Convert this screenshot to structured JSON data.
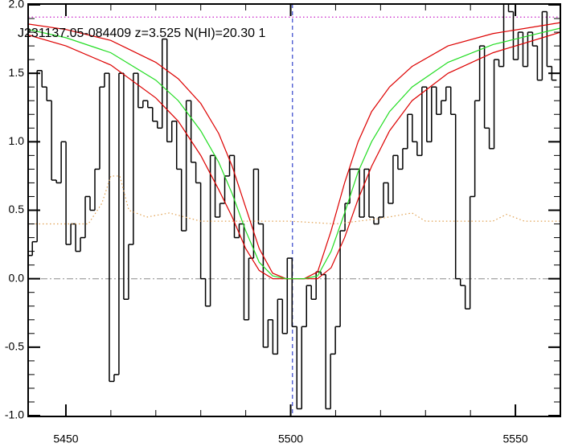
{
  "chart_data": {
    "type": "spectrum",
    "title": "J231137.05-084409 z=3.525 N(HI)=20.30 1",
    "xlim": [
      5441.6,
      5560
    ],
    "ylim": [
      -1.0,
      2.0
    ],
    "xticks": [
      5450,
      5500,
      5550
    ],
    "yticks": [
      {
        "value": -1,
        "label": "-1.0"
      },
      {
        "value": -0.5,
        "label": "-0.5"
      },
      {
        "value": 0,
        "label": "0.0"
      },
      0.5,
      {
        "value": 1,
        "label": "1.0"
      },
      1.5,
      {
        "value": 2,
        "label": "2.0"
      }
    ],
    "series": [
      {
        "style": "step",
        "color": "#000000",
        "x": [
          5442.0,
          5443.07,
          5444.14,
          5445.21,
          5446.28,
          5447.35,
          5448.42,
          5449.49,
          5450.56,
          5451.63,
          5452.7,
          5453.77,
          5454.84,
          5455.91,
          5456.98,
          5458.05,
          5459.12,
          5460.19,
          5461.26,
          5462.33,
          5463.4,
          5464.47,
          5465.54,
          5466.61,
          5467.68,
          5468.75,
          5469.82,
          5470.89,
          5471.96,
          5473.03,
          5474.1,
          5475.17,
          5476.24,
          5477.31,
          5478.38,
          5479.45,
          5480.52,
          5481.59,
          5482.66,
          5483.73,
          5484.8,
          5485.87,
          5486.94,
          5488.01,
          5489.08,
          5490.15,
          5491.22,
          5492.29,
          5493.36,
          5494.43,
          5495.5,
          5496.57,
          5497.64,
          5498.71,
          5499.78,
          5500.85,
          5501.92,
          5502.99,
          5504.06,
          5505.13,
          5506.2,
          5507.27,
          5508.34,
          5509.41,
          5510.48,
          5511.55,
          5512.62,
          5513.69,
          5514.76,
          5515.83,
          5516.9,
          5517.97,
          5519.04,
          5520.11,
          5521.18,
          5522.25,
          5523.32,
          5524.39,
          5525.46,
          5526.53,
          5527.6,
          5528.67,
          5529.74,
          5530.81,
          5531.88,
          5532.95,
          5534.02,
          5535.09,
          5536.16,
          5537.23,
          5538.3,
          5539.37,
          5540.44,
          5541.51,
          5542.58,
          5543.65,
          5544.72,
          5545.79,
          5546.86,
          5547.93,
          5549.0,
          5550.07,
          5551.14,
          5552.21,
          5553.28,
          5554.35,
          5555.42,
          5556.49,
          5557.56,
          5558.63
        ],
        "values": [
          0.17,
          0.27,
          1.52,
          1.4,
          1.3,
          0.72,
          0.7,
          1.0,
          0.25,
          0.4,
          0.2,
          0.3,
          0.6,
          0.5,
          0.8,
          1.4,
          1.5,
          -0.75,
          -0.7,
          1.5,
          -0.15,
          0.25,
          1.5,
          1.25,
          1.3,
          1.25,
          1.15,
          1.1,
          1.75,
          1.0,
          1.15,
          0.8,
          0.35,
          1.3,
          0.85,
          0.7,
          0.0,
          -0.2,
          0.9,
          0.45,
          0.55,
          0.75,
          0.9,
          0.3,
          0.4,
          -0.3,
          0.15,
          0.8,
          0.4,
          -0.5,
          -0.3,
          -0.55,
          -0.15,
          -0.4,
          0.15,
          -0.35,
          -0.95,
          -0.35,
          -0.05,
          -0.15,
          0.05,
          0.03,
          -0.95,
          -0.55,
          -0.35,
          0.35,
          0.55,
          0.8,
          0.8,
          0.45,
          0.8,
          0.45,
          0.4,
          0.45,
          0.7,
          0.55,
          0.9,
          0.8,
          0.95,
          1.2,
          1.0,
          0.9,
          1.4,
          1.0,
          1.4,
          1.2,
          1.3,
          1.4,
          1.2,
          0.0,
          -0.05,
          -0.22,
          0.6,
          1.3,
          1.7,
          1.1,
          0.95,
          1.6,
          1.55,
          2.05,
          1.95,
          1.6,
          1.8,
          1.55,
          1.8,
          1.7,
          1.45,
          1.95,
          1.55,
          1.45
        ]
      },
      {
        "style": "dotted",
        "color": "#e0a050",
        "x": [
          5441.6,
          5455,
          5458,
          5460,
          5462,
          5464,
          5468,
          5473,
          5480,
          5490,
          5500,
          5510,
          5520,
          5527,
          5530,
          5545,
          5548,
          5552,
          5560
        ],
        "values": [
          0.4,
          0.4,
          0.55,
          0.75,
          0.75,
          0.5,
          0.45,
          0.48,
          0.42,
          0.42,
          0.42,
          0.4,
          0.44,
          0.48,
          0.42,
          0.42,
          0.47,
          0.42,
          0.42
        ]
      },
      {
        "style": "line",
        "color": "#dd0000",
        "x": [
          5441.6,
          5450,
          5460,
          5470,
          5475,
          5480,
          5484,
          5487,
          5490,
          5493,
          5496,
          5499,
          5501,
          5503,
          5506,
          5509,
          5512,
          5515,
          5518,
          5522,
          5527,
          5535,
          5545,
          5560
        ],
        "values": [
          1.78,
          1.7,
          1.56,
          1.32,
          1.15,
          0.9,
          0.65,
          0.45,
          0.22,
          0.06,
          0.0,
          0.0,
          0.0,
          0.0,
          0.0,
          0.08,
          0.3,
          0.58,
          0.82,
          1.08,
          1.3,
          1.5,
          1.65,
          1.8
        ]
      },
      {
        "style": "line",
        "color": "#dd0000",
        "x": [
          5441.6,
          5450,
          5460,
          5470,
          5475,
          5480,
          5484,
          5487,
          5490,
          5493,
          5496,
          5499,
          5501,
          5503,
          5506,
          5509,
          5512,
          5515,
          5518,
          5522,
          5527,
          5535,
          5545,
          5560
        ],
        "values": [
          1.86,
          1.82,
          1.74,
          1.58,
          1.46,
          1.28,
          1.06,
          0.82,
          0.52,
          0.22,
          0.04,
          0.0,
          0.0,
          0.0,
          0.05,
          0.35,
          0.7,
          1.0,
          1.22,
          1.4,
          1.55,
          1.7,
          1.79,
          1.87
        ]
      },
      {
        "style": "line",
        "color": "#22dd22",
        "x": [
          5441.6,
          5450,
          5460,
          5470,
          5475,
          5480,
          5484,
          5487,
          5490,
          5493,
          5496,
          5499,
          5501,
          5503,
          5506,
          5509,
          5512,
          5515,
          5518,
          5522,
          5527,
          5535,
          5545,
          5560
        ],
        "values": [
          1.82,
          1.76,
          1.65,
          1.45,
          1.3,
          1.08,
          0.85,
          0.62,
          0.35,
          0.12,
          0.02,
          0.0,
          0.0,
          0.0,
          0.02,
          0.2,
          0.48,
          0.78,
          1.0,
          1.22,
          1.4,
          1.58,
          1.71,
          1.83
        ]
      }
    ],
    "hlines": [
      {
        "value": 1.91,
        "color": "#cc33cc",
        "style": "dotted"
      },
      {
        "value": 0,
        "color": "#aaaaaa",
        "style": "dashdot"
      }
    ],
    "vlines": [
      {
        "value": 5500.4,
        "color": "#3344cc",
        "style": "dashed"
      }
    ]
  }
}
